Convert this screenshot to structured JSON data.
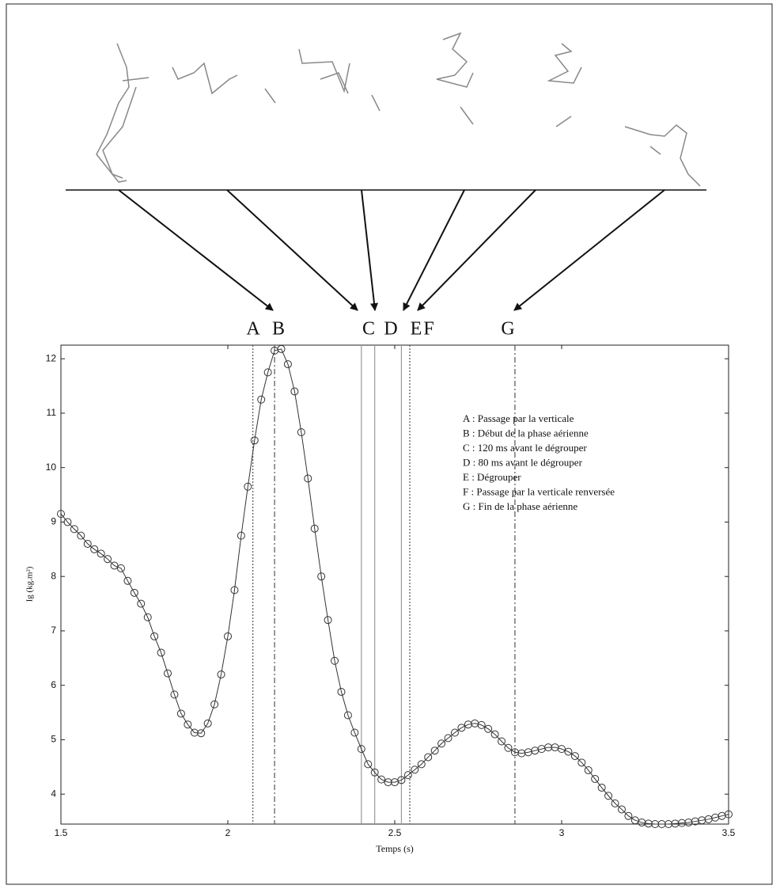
{
  "chart_data": {
    "type": "line",
    "xlabel": "Temps (s)",
    "ylabel": "Ig (kg.m²)",
    "x": [
      1.5,
      1.52,
      1.54,
      1.56,
      1.58,
      1.6,
      1.62,
      1.64,
      1.66,
      1.68,
      1.7,
      1.72,
      1.74,
      1.76,
      1.78,
      1.8,
      1.82,
      1.84,
      1.86,
      1.88,
      1.9,
      1.92,
      1.94,
      1.96,
      1.98,
      2.0,
      2.02,
      2.04,
      2.06,
      2.08,
      2.1,
      2.12,
      2.14,
      2.16,
      2.18,
      2.2,
      2.22,
      2.24,
      2.26,
      2.28,
      2.3,
      2.32,
      2.34,
      2.36,
      2.38,
      2.4,
      2.42,
      2.44,
      2.46,
      2.48,
      2.5,
      2.52,
      2.54,
      2.56,
      2.58,
      2.6,
      2.62,
      2.64,
      2.66,
      2.68,
      2.7,
      2.72,
      2.74,
      2.76,
      2.78,
      2.8,
      2.82,
      2.84,
      2.86,
      2.88,
      2.9,
      2.92,
      2.94,
      2.96,
      2.98,
      3.0,
      3.02,
      3.04,
      3.06,
      3.08,
      3.1,
      3.12,
      3.14,
      3.16,
      3.18,
      3.2,
      3.22,
      3.24,
      3.26,
      3.28,
      3.3,
      3.32,
      3.34,
      3.36,
      3.38,
      3.4,
      3.42,
      3.44,
      3.46,
      3.48,
      3.5
    ],
    "series": [
      {
        "color": "#333333",
        "values": [
          9.15,
          9.0,
          8.87,
          8.75,
          8.6,
          8.5,
          8.42,
          8.32,
          8.2,
          8.15,
          7.92,
          7.7,
          7.5,
          7.25,
          6.9,
          6.6,
          6.22,
          5.83,
          5.48,
          5.28,
          5.13,
          5.12,
          5.3,
          5.65,
          6.2,
          6.9,
          7.75,
          8.75,
          9.65,
          10.5,
          11.25,
          11.75,
          12.15,
          12.18,
          11.9,
          11.4,
          10.65,
          9.8,
          8.88,
          8.0,
          7.2,
          6.45,
          5.88,
          5.45,
          5.13,
          4.83,
          4.55,
          4.4,
          4.27,
          4.22,
          4.22,
          4.26,
          4.35,
          4.45,
          4.55,
          4.68,
          4.8,
          4.93,
          5.03,
          5.13,
          5.22,
          5.28,
          5.3,
          5.27,
          5.2,
          5.1,
          4.97,
          4.85,
          4.77,
          4.75,
          4.77,
          4.8,
          4.83,
          4.86,
          4.86,
          4.83,
          4.78,
          4.7,
          4.58,
          4.44,
          4.28,
          4.12,
          3.97,
          3.83,
          3.72,
          3.6,
          3.52,
          3.48,
          3.46,
          3.45,
          3.45,
          3.45,
          3.46,
          3.47,
          3.48,
          3.5,
          3.52,
          3.54,
          3.57,
          3.6,
          3.63
        ]
      }
    ],
    "xlim": [
      1.5,
      3.5
    ],
    "xticks": [
      1.5,
      2,
      2.5,
      3,
      3.5
    ],
    "ylim": [
      3.45,
      12.25
    ],
    "yticks": [
      4,
      5,
      6,
      7,
      8,
      9,
      10,
      11,
      12
    ],
    "events": [
      {
        "letter": "A",
        "x": 2.075,
        "style": "dotted"
      },
      {
        "letter": "B",
        "x": 2.14,
        "style": "dashdot"
      },
      {
        "letter": "C",
        "x": 2.4,
        "style": "solid"
      },
      {
        "letter": "D",
        "x": 2.44,
        "style": "solid"
      },
      {
        "letter": "E",
        "x": 2.52,
        "style": "solid"
      },
      {
        "letter": "F",
        "x": 2.545,
        "style": "dotted"
      },
      {
        "letter": "G",
        "x": 2.86,
        "style": "dashdot"
      }
    ],
    "annotations": [
      "A : Passage par la verticale",
      "B : Début de la phase aérienne",
      "C : 120 ms avant le dégrouper",
      "D : 80 ms avant le dégrouper",
      "E : Dégrouper",
      "F : Passage par la verticale renversée",
      "G : Fin de la phase aérienne"
    ]
  }
}
